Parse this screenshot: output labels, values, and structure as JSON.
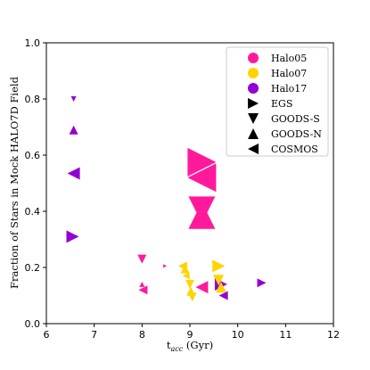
{
  "chart_data": {
    "type": "scatter",
    "xlabel": "t",
    "xlabel_sub": "acc",
    "xlabel_unit": " (Gyr)",
    "ylabel": "Fraction of Stars in Mock HALO7D Field",
    "xlim": [
      6,
      12
    ],
    "ylim": [
      0.0,
      1.0
    ],
    "xticks": [
      6,
      7,
      8,
      9,
      10,
      11,
      12
    ],
    "yticks": [
      0.0,
      0.2,
      0.4,
      0.6,
      0.8,
      1.0
    ],
    "grid": false,
    "legend_position": "top-right",
    "colors": {
      "Halo05": "#ff1a9c",
      "Halo07": "#ffd400",
      "Halo17": "#9400d3"
    },
    "legend_halos": [
      "Halo05",
      "Halo07",
      "Halo17"
    ],
    "legend_fields": [
      {
        "label": "EGS",
        "marker": "right"
      },
      {
        "label": "GOODS-S",
        "marker": "down"
      },
      {
        "label": "GOODS-N",
        "marker": "up"
      },
      {
        "label": "COSMOS",
        "marker": "left"
      }
    ],
    "points": [
      {
        "halo": "Halo17",
        "field": "GOODS-S",
        "x": 6.57,
        "y": 0.8,
        "size": 3
      },
      {
        "halo": "Halo17",
        "field": "GOODS-N",
        "x": 6.57,
        "y": 0.69,
        "size": 5
      },
      {
        "halo": "Halo17",
        "field": "COSMOS",
        "x": 6.57,
        "y": 0.535,
        "size": 7
      },
      {
        "halo": "Halo17",
        "field": "EGS",
        "x": 6.55,
        "y": 0.31,
        "size": 7
      },
      {
        "halo": "Halo17",
        "field": "EGS",
        "x": 9.65,
        "y": 0.14,
        "size": 7
      },
      {
        "halo": "Halo17",
        "field": "COSMOS",
        "x": 9.7,
        "y": 0.1,
        "size": 5
      },
      {
        "halo": "Halo17",
        "field": "EGS",
        "x": 10.5,
        "y": 0.145,
        "size": 5
      },
      {
        "halo": "Halo05",
        "field": "EGS",
        "x": 9.25,
        "y": 0.575,
        "size": 16
      },
      {
        "halo": "Halo05",
        "field": "COSMOS",
        "x": 9.25,
        "y": 0.52,
        "size": 16
      },
      {
        "halo": "Halo05",
        "field": "GOODS-S",
        "x": 9.25,
        "y": 0.405,
        "size": 15
      },
      {
        "halo": "Halo05",
        "field": "GOODS-N",
        "x": 9.25,
        "y": 0.385,
        "size": 15
      },
      {
        "halo": "Halo05",
        "field": "GOODS-S",
        "x": 8.0,
        "y": 0.23,
        "size": 5
      },
      {
        "halo": "Halo05",
        "field": "GOODS-N",
        "x": 8.0,
        "y": 0.14,
        "size": 3
      },
      {
        "halo": "Halo05",
        "field": "COSMOS",
        "x": 8.02,
        "y": 0.12,
        "size": 5
      },
      {
        "halo": "Halo05",
        "field": "EGS",
        "x": 8.48,
        "y": 0.205,
        "size": 2
      },
      {
        "halo": "Halo05",
        "field": "COSMOS",
        "x": 9.25,
        "y": 0.13,
        "size": 7
      },
      {
        "halo": "Halo07",
        "field": "COSMOS",
        "x": 8.85,
        "y": 0.205,
        "size": 5
      },
      {
        "halo": "Halo07",
        "field": "GOODS-N",
        "x": 8.9,
        "y": 0.195,
        "size": 5
      },
      {
        "halo": "Halo07",
        "field": "COSMOS",
        "x": 8.92,
        "y": 0.17,
        "size": 4
      },
      {
        "halo": "Halo07",
        "field": "GOODS-S",
        "x": 9.0,
        "y": 0.14,
        "size": 5
      },
      {
        "halo": "Halo07",
        "field": "GOODS-N",
        "x": 9.02,
        "y": 0.115,
        "size": 5
      },
      {
        "halo": "Halo07",
        "field": "GOODS-S",
        "x": 9.05,
        "y": 0.095,
        "size": 5
      },
      {
        "halo": "Halo07",
        "field": "EGS",
        "x": 9.6,
        "y": 0.205,
        "size": 7
      },
      {
        "halo": "Halo07",
        "field": "GOODS-S",
        "x": 9.6,
        "y": 0.155,
        "size": 6
      },
      {
        "halo": "Halo07",
        "field": "GOODS-N",
        "x": 9.65,
        "y": 0.13,
        "size": 6
      }
    ]
  }
}
